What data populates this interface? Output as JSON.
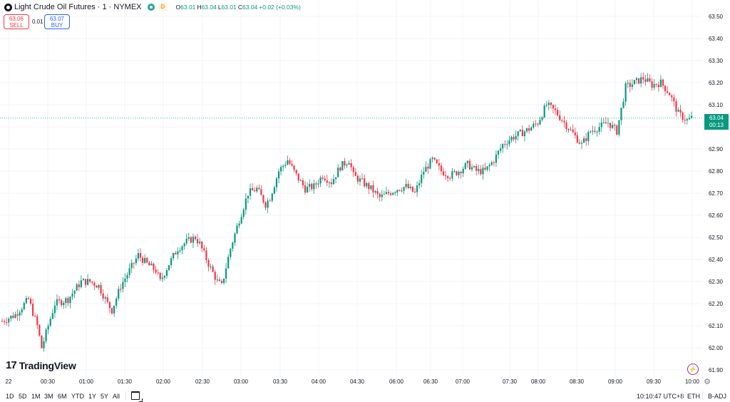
{
  "header": {
    "title": "Light Crude Oil Futures · 1 · NYMEX",
    "badge": "D",
    "open_label": "O",
    "open": "63.01",
    "high_label": "H",
    "high": "63.04",
    "low_label": "L",
    "low": "63.01",
    "close_label": "C",
    "close": "63.04",
    "change": "+0.02 (+0.03%)"
  },
  "trade": {
    "sell_price": "63.06",
    "sell_label": "SELL",
    "spread": "0.01",
    "buy_price": "63.07",
    "buy_label": "BUY"
  },
  "last_price": {
    "price": "63.04",
    "countdown": "00:13"
  },
  "logo_text": "TradingView",
  "bottom": {
    "ranges": [
      "1D",
      "5D",
      "1M",
      "3M",
      "6M",
      "YTD",
      "1Y",
      "5Y",
      "All"
    ],
    "time": "10:10:47 UTC+8",
    "session": "ETH",
    "adjustment": "B-ADJ"
  },
  "colors": {
    "up": "#089981",
    "down": "#f23645",
    "accent": "#2962ff",
    "grid": "#f0f3fa"
  },
  "chart_data": {
    "type": "candlestick",
    "interval": "1 minute",
    "x_tick_labels": [
      "22",
      "00:30",
      "01:00",
      "01:30",
      "02:00",
      "02:30",
      "03:00",
      "03:30",
      "04:00",
      "04:30",
      "06:00",
      "06:30",
      "07:00",
      "07:30",
      "08:00",
      "08:30",
      "09:00",
      "09:30",
      "10:00"
    ],
    "y_tick_labels": [
      "61.90",
      "62.00",
      "62.10",
      "62.20",
      "62.30",
      "62.40",
      "62.50",
      "62.60",
      "62.70",
      "62.80",
      "62.90",
      "63.00",
      "63.10",
      "63.20",
      "63.30",
      "63.40",
      "63.50"
    ],
    "ylim": [
      61.88,
      63.55
    ],
    "last_price": 63.04,
    "grid": true,
    "series": [
      {
        "name": "Light Crude Oil Futures",
        "close_path": [
          [
            0,
            62.12
          ],
          [
            3,
            62.15
          ],
          [
            6,
            62.22
          ],
          [
            8,
            62.1
          ],
          [
            9,
            62.0
          ],
          [
            12,
            62.2
          ],
          [
            15,
            62.22
          ],
          [
            18,
            62.3
          ],
          [
            20,
            62.3
          ],
          [
            22,
            62.28
          ],
          [
            24,
            62.2
          ],
          [
            25,
            62.17
          ],
          [
            27,
            62.28
          ],
          [
            29,
            62.35
          ],
          [
            31,
            62.42
          ],
          [
            33,
            62.38
          ],
          [
            35,
            62.35
          ],
          [
            36,
            62.3
          ],
          [
            38,
            62.38
          ],
          [
            40,
            62.45
          ],
          [
            42,
            62.48
          ],
          [
            44,
            62.5
          ],
          [
            45,
            62.47
          ],
          [
            47,
            62.38
          ],
          [
            49,
            62.3
          ],
          [
            50,
            62.28
          ],
          [
            52,
            62.45
          ],
          [
            54,
            62.58
          ],
          [
            56,
            62.7
          ],
          [
            58,
            62.72
          ],
          [
            60,
            62.65
          ],
          [
            61,
            62.68
          ],
          [
            63,
            62.8
          ],
          [
            65,
            62.85
          ],
          [
            67,
            62.78
          ],
          [
            69,
            62.72
          ],
          [
            71,
            62.73
          ],
          [
            73,
            62.78
          ],
          [
            75,
            62.75
          ],
          [
            77,
            62.82
          ],
          [
            79,
            62.85
          ],
          [
            80,
            62.78
          ],
          [
            82,
            62.75
          ],
          [
            84,
            62.72
          ],
          [
            86,
            62.68
          ],
          [
            88,
            62.7
          ],
          [
            90,
            62.72
          ],
          [
            92,
            62.73
          ],
          [
            94,
            62.7
          ],
          [
            96,
            62.8
          ],
          [
            98,
            62.85
          ],
          [
            100,
            62.8
          ],
          [
            102,
            62.78
          ],
          [
            104,
            62.8
          ],
          [
            106,
            62.83
          ],
          [
            108,
            62.8
          ],
          [
            110,
            62.8
          ],
          [
            112,
            62.85
          ],
          [
            114,
            62.92
          ],
          [
            116,
            62.95
          ],
          [
            118,
            62.97
          ],
          [
            120,
            62.99
          ],
          [
            122,
            63.02
          ],
          [
            124,
            63.1
          ],
          [
            126,
            63.07
          ],
          [
            128,
            63.02
          ],
          [
            130,
            62.97
          ],
          [
            132,
            62.92
          ],
          [
            134,
            62.98
          ],
          [
            136,
            63.0
          ],
          [
            138,
            63.02
          ],
          [
            140,
            62.98
          ],
          [
            142,
            63.18
          ],
          [
            144,
            63.2
          ],
          [
            146,
            63.22
          ],
          [
            148,
            63.19
          ],
          [
            150,
            63.2
          ],
          [
            152,
            63.15
          ],
          [
            154,
            63.06
          ],
          [
            156,
            63.03
          ],
          [
            157,
            63.04
          ]
        ]
      }
    ]
  }
}
